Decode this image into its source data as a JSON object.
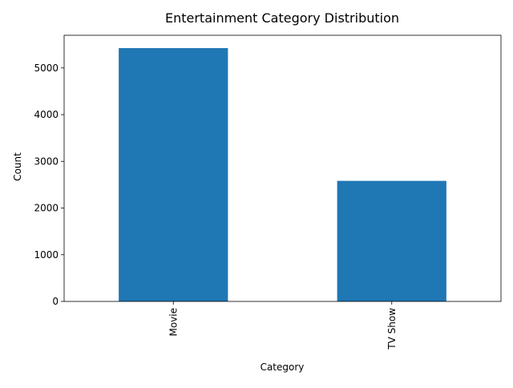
{
  "chart_data": {
    "type": "bar",
    "title": "Entertainment Category Distribution",
    "xlabel": "Category",
    "ylabel": "Count",
    "categories": [
      "Movie",
      "TV Show"
    ],
    "values": [
      5425,
      2582
    ],
    "ylim": [
      0,
      5700
    ],
    "yticks": [
      0,
      1000,
      2000,
      3000,
      4000,
      5000
    ],
    "ytick_labels": [
      "0",
      "1000",
      "2000",
      "3000",
      "4000",
      "5000"
    ],
    "grid": false,
    "legend": "none",
    "bar_color": "#1f77b4"
  }
}
